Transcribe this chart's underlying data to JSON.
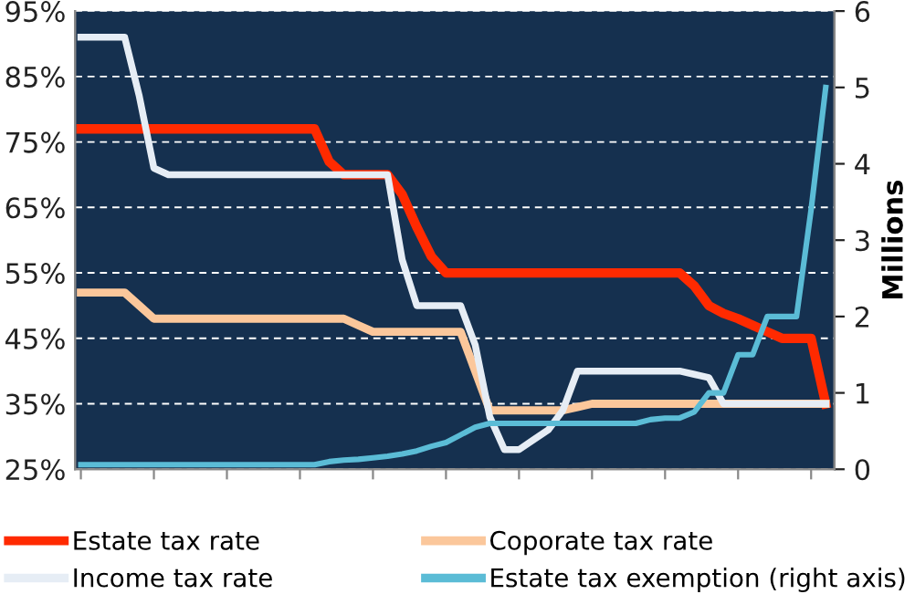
{
  "chart_data": {
    "type": "line",
    "categories": [
      null,
      null,
      null,
      null,
      null,
      null,
      null,
      null,
      null,
      null,
      null,
      null,
      null,
      null,
      null,
      null,
      null,
      null,
      null,
      null,
      null,
      null,
      null,
      null,
      null,
      null,
      null,
      null,
      null,
      null,
      null,
      null,
      null,
      null,
      null,
      null,
      null,
      null,
      null,
      null,
      null,
      null,
      null,
      null,
      null,
      null,
      null,
      null,
      null,
      null,
      null,
      null
    ],
    "series": [
      {
        "name": "Estate tax rate",
        "color": "#ff2a00",
        "values": [
          77,
          77,
          77,
          77,
          77,
          77,
          77,
          77,
          77,
          77,
          77,
          77,
          77,
          77,
          77,
          77,
          77,
          72,
          70,
          70,
          70,
          70,
          67,
          62,
          57.5,
          55,
          55,
          55,
          55,
          55,
          55,
          55,
          55,
          55,
          55,
          55,
          55,
          55,
          55,
          55,
          55,
          55,
          53,
          50,
          48.8,
          48,
          47,
          46,
          45,
          45,
          45,
          35
        ]
      },
      {
        "name": "Coporate tax rate",
        "color": "#fbc79b",
        "values": [
          52,
          52,
          52,
          52,
          50,
          48,
          48,
          48,
          48,
          48,
          48,
          48,
          48,
          48,
          48,
          48,
          48,
          48,
          48,
          47,
          46,
          46,
          46,
          46,
          46,
          46,
          46,
          40,
          34,
          34,
          34,
          34,
          34,
          34,
          34.5,
          35,
          35,
          35,
          35,
          35,
          35,
          35,
          35,
          35,
          35,
          35,
          35,
          35,
          35,
          35,
          35,
          35
        ]
      },
      {
        "name": "Income tax rate",
        "color": "#e6edf5",
        "values": [
          91,
          91,
          91,
          91,
          82,
          71,
          70,
          70,
          70,
          70,
          70,
          70,
          70,
          70,
          70,
          70,
          70,
          70,
          70,
          70,
          70,
          70,
          57,
          50,
          50,
          50,
          50,
          44,
          33,
          28,
          28,
          29.5,
          31,
          34,
          40,
          40,
          40,
          40,
          40,
          40,
          40,
          40,
          39.5,
          39,
          35,
          35,
          35,
          35,
          35,
          35,
          35,
          35
        ]
      },
      {
        "name": "Estate tax exemption (right axis)",
        "color": "#5bbcd6",
        "axis": "y2",
        "values": [
          0.06,
          0.06,
          0.06,
          0.06,
          0.06,
          0.06,
          0.06,
          0.06,
          0.06,
          0.06,
          0.06,
          0.06,
          0.06,
          0.06,
          0.06,
          0.06,
          0.06,
          0.1,
          0.12,
          0.13,
          0.15,
          0.17,
          0.2,
          0.24,
          0.3,
          0.35,
          0.45,
          0.55,
          0.6,
          0.6,
          0.6,
          0.6,
          0.6,
          0.6,
          0.6,
          0.6,
          0.6,
          0.6,
          0.6,
          0.65,
          0.67,
          0.67,
          0.75,
          1.0,
          1.0,
          1.5,
          1.5,
          2.0,
          2.0,
          2.0,
          3.4,
          5.0
        ]
      }
    ],
    "y2label": "Millions",
    "ylim": [
      25,
      95
    ],
    "yticks": [
      {
        "value": 25,
        "label": "25%"
      },
      {
        "value": 35,
        "label": "35%"
      },
      {
        "value": 45,
        "label": "45%"
      },
      {
        "value": 55,
        "label": "55%"
      },
      {
        "value": 65,
        "label": "65%"
      },
      {
        "value": 75,
        "label": "75%"
      },
      {
        "value": 85,
        "label": "85%"
      },
      {
        "value": 95,
        "label": "95%"
      }
    ],
    "y2lim": [
      0,
      6
    ],
    "y2ticks": [
      0,
      1,
      2,
      3,
      4,
      5,
      6
    ],
    "tick_labels": "y",
    "grid": "y",
    "legend": "bottom",
    "marker": "none",
    "line_style": "solid"
  }
}
